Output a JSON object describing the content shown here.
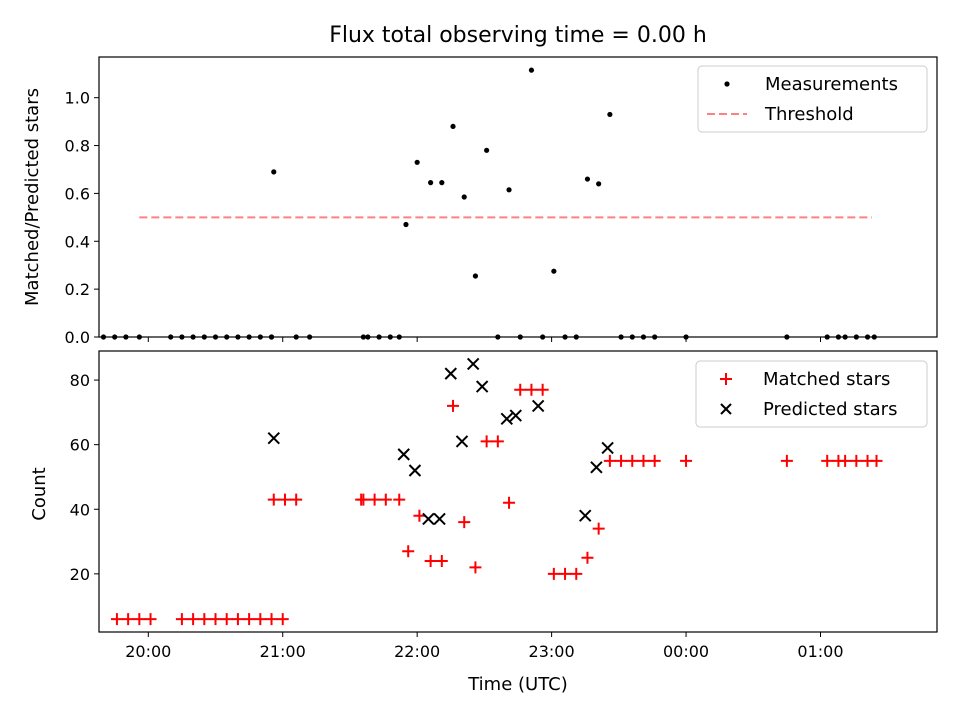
{
  "chart_data": [
    {
      "type": "scatter",
      "title": "Flux total observing time = 0.00 h",
      "xlabel": "",
      "ylabel": "Matched/Predicted stars",
      "xlim": [
        "19:38",
        "01:52"
      ],
      "ylim": [
        0,
        1.17
      ],
      "yticks": [
        "0.0",
        "0.2",
        "0.4",
        "0.6",
        "0.8",
        "1.0"
      ],
      "grid": false,
      "legend_position": "top-right",
      "series": [
        {
          "name": "Measurements",
          "marker": "dot",
          "color": "#000000",
          "points": [
            [
              "19:40",
              0
            ],
            [
              "19:45",
              0
            ],
            [
              "19:50",
              0
            ],
            [
              "19:56",
              0
            ],
            [
              "20:10",
              0
            ],
            [
              "20:15",
              0
            ],
            [
              "20:20",
              0
            ],
            [
              "20:25",
              0
            ],
            [
              "20:30",
              0
            ],
            [
              "20:35",
              0
            ],
            [
              "20:40",
              0
            ],
            [
              "20:45",
              0
            ],
            [
              "20:50",
              0
            ],
            [
              "20:55",
              0
            ],
            [
              "20:55",
              0
            ],
            [
              "20:56",
              0.69
            ],
            [
              "21:06",
              0
            ],
            [
              "21:12",
              0
            ],
            [
              "21:36",
              0
            ],
            [
              "21:38",
              0
            ],
            [
              "21:43",
              0
            ],
            [
              "21:48",
              0
            ],
            [
              "21:52",
              0
            ],
            [
              "21:55",
              0.47
            ],
            [
              "22:00",
              0.73
            ],
            [
              "22:06",
              0.645
            ],
            [
              "22:11",
              0.645
            ],
            [
              "22:16",
              0.88
            ],
            [
              "22:21",
              0.585
            ],
            [
              "22:26",
              0.255
            ],
            [
              "22:31",
              0.78
            ],
            [
              "22:36",
              0
            ],
            [
              "22:41",
              0.615
            ],
            [
              "22:46",
              0
            ],
            [
              "22:51",
              1.115
            ],
            [
              "22:56",
              0
            ],
            [
              "23:01",
              0.275
            ],
            [
              "23:06",
              0
            ],
            [
              "23:11",
              0
            ],
            [
              "23:16",
              0.66
            ],
            [
              "23:21",
              0.64
            ],
            [
              "23:26",
              0.93
            ],
            [
              "23:31",
              0
            ],
            [
              "23:36",
              0
            ],
            [
              "23:41",
              0
            ],
            [
              "23:46",
              0
            ],
            [
              "00:00",
              0
            ],
            [
              "00:45",
              0
            ],
            [
              "01:03",
              0
            ],
            [
              "01:08",
              0
            ],
            [
              "01:11",
              0
            ],
            [
              "01:16",
              0
            ],
            [
              "01:21",
              0
            ],
            [
              "01:24",
              0
            ]
          ]
        },
        {
          "name": "Threshold",
          "style": "dashed-line",
          "color": "#ff8080",
          "x_range": [
            "19:56",
            "01:23"
          ],
          "value": 0.5
        }
      ]
    },
    {
      "type": "scatter",
      "title": "",
      "xlabel": "Time (UTC)",
      "ylabel": "Count",
      "xlim": [
        "19:38",
        "01:52"
      ],
      "ylim": [
        2,
        89
      ],
      "yticks": [
        "20",
        "40",
        "60",
        "80"
      ],
      "xticks": [
        "20:00",
        "21:00",
        "22:00",
        "23:00",
        "00:00",
        "01:00"
      ],
      "grid": false,
      "legend_position": "top-right",
      "series": [
        {
          "name": "Matched stars",
          "marker": "plus",
          "color": "#ff0000",
          "points": [
            [
              "19:46",
              6
            ],
            [
              "19:51",
              6
            ],
            [
              "19:56",
              6
            ],
            [
              "20:01",
              6
            ],
            [
              "20:15",
              6
            ],
            [
              "20:20",
              6
            ],
            [
              "20:25",
              6
            ],
            [
              "20:30",
              6
            ],
            [
              "20:35",
              6
            ],
            [
              "20:40",
              6
            ],
            [
              "20:45",
              6
            ],
            [
              "20:50",
              6
            ],
            [
              "20:55",
              6
            ],
            [
              "21:00",
              6
            ],
            [
              "20:56",
              43
            ],
            [
              "21:01",
              43
            ],
            [
              "21:06",
              43
            ],
            [
              "21:35",
              43
            ],
            [
              "21:36",
              43
            ],
            [
              "21:41",
              43
            ],
            [
              "21:46",
              43
            ],
            [
              "21:52",
              43
            ],
            [
              "21:56",
              27
            ],
            [
              "22:01",
              38
            ],
            [
              "22:06",
              24
            ],
            [
              "22:11",
              24
            ],
            [
              "22:16",
              72
            ],
            [
              "22:21",
              36
            ],
            [
              "22:26",
              22
            ],
            [
              "22:31",
              61
            ],
            [
              "22:36",
              61
            ],
            [
              "22:41",
              42
            ],
            [
              "22:46",
              77
            ],
            [
              "22:51",
              77
            ],
            [
              "22:56",
              77
            ],
            [
              "23:01",
              20
            ],
            [
              "23:06",
              20
            ],
            [
              "23:11",
              20
            ],
            [
              "23:16",
              25
            ],
            [
              "23:21",
              34
            ],
            [
              "23:26",
              55
            ],
            [
              "23:31",
              55
            ],
            [
              "23:36",
              55
            ],
            [
              "23:41",
              55
            ],
            [
              "23:46",
              55
            ],
            [
              "00:00",
              55
            ],
            [
              "00:45",
              55
            ],
            [
              "01:03",
              55
            ],
            [
              "01:08",
              55
            ],
            [
              "01:11",
              55
            ],
            [
              "01:16",
              55
            ],
            [
              "01:21",
              55
            ],
            [
              "01:25",
              55
            ]
          ]
        },
        {
          "name": "Predicted stars",
          "marker": "x",
          "color": "#000000",
          "points": [
            [
              "20:56",
              62
            ],
            [
              "21:54",
              57
            ],
            [
              "21:59",
              52
            ],
            [
              "22:05",
              37
            ],
            [
              "22:10",
              37
            ],
            [
              "22:15",
              82
            ],
            [
              "22:20",
              61
            ],
            [
              "22:25",
              85
            ],
            [
              "22:29",
              78
            ],
            [
              "22:40",
              68
            ],
            [
              "22:44",
              69
            ],
            [
              "22:54",
              72
            ],
            [
              "23:15",
              38
            ],
            [
              "23:20",
              53
            ],
            [
              "23:25",
              59
            ]
          ]
        }
      ]
    }
  ]
}
